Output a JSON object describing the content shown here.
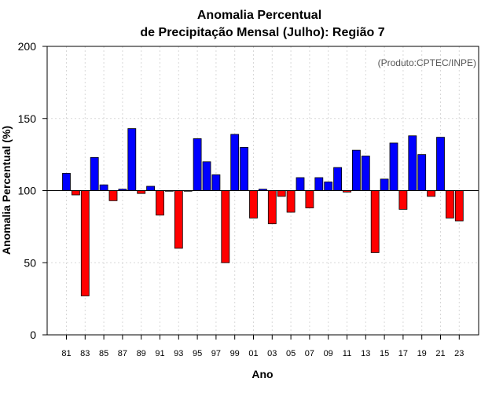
{
  "chart_data": {
    "type": "bar",
    "title": "Anomalia Percentual",
    "subtitle": "de Precipitação Mensal (Julho): Região 7",
    "xlabel": "Ano",
    "ylabel": "Anomalia Percentual (%)",
    "annotation": "(Produto:CPTEC/INPE)",
    "baseline": 100,
    "ylim": [
      0,
      200
    ],
    "yticks": [
      "0",
      "50",
      "100",
      "150",
      "200"
    ],
    "grid": true,
    "colors": {
      "above": "#0000ff",
      "below": "#ff0000",
      "outline": "#000000",
      "grid": "#d8d8d8"
    },
    "categories": [
      "81",
      "82",
      "83",
      "84",
      "85",
      "86",
      "87",
      "88",
      "89",
      "90",
      "91",
      "92",
      "93",
      "94",
      "95",
      "96",
      "97",
      "98",
      "99",
      "00",
      "01",
      "02",
      "03",
      "04",
      "05",
      "06",
      "07",
      "08",
      "09",
      "10",
      "11",
      "12",
      "13",
      "14",
      "15",
      "16",
      "17",
      "18",
      "19",
      "20",
      "21",
      "22",
      "23"
    ],
    "tick_labels": [
      "81",
      "83",
      "85",
      "87",
      "89",
      "91",
      "93",
      "95",
      "97",
      "99",
      "01",
      "03",
      "05",
      "07",
      "09",
      "11",
      "13",
      "15",
      "17",
      "19",
      "21",
      "23"
    ],
    "values": [
      112,
      97,
      27,
      123,
      104,
      93,
      101,
      143,
      98,
      103,
      83,
      100,
      60,
      100,
      136,
      120,
      111,
      50,
      139,
      130,
      81,
      101,
      77,
      96,
      85,
      109,
      88,
      109,
      106,
      116,
      99,
      128,
      124,
      57,
      108,
      133,
      87,
      138,
      125,
      96,
      137,
      81,
      79
    ]
  }
}
